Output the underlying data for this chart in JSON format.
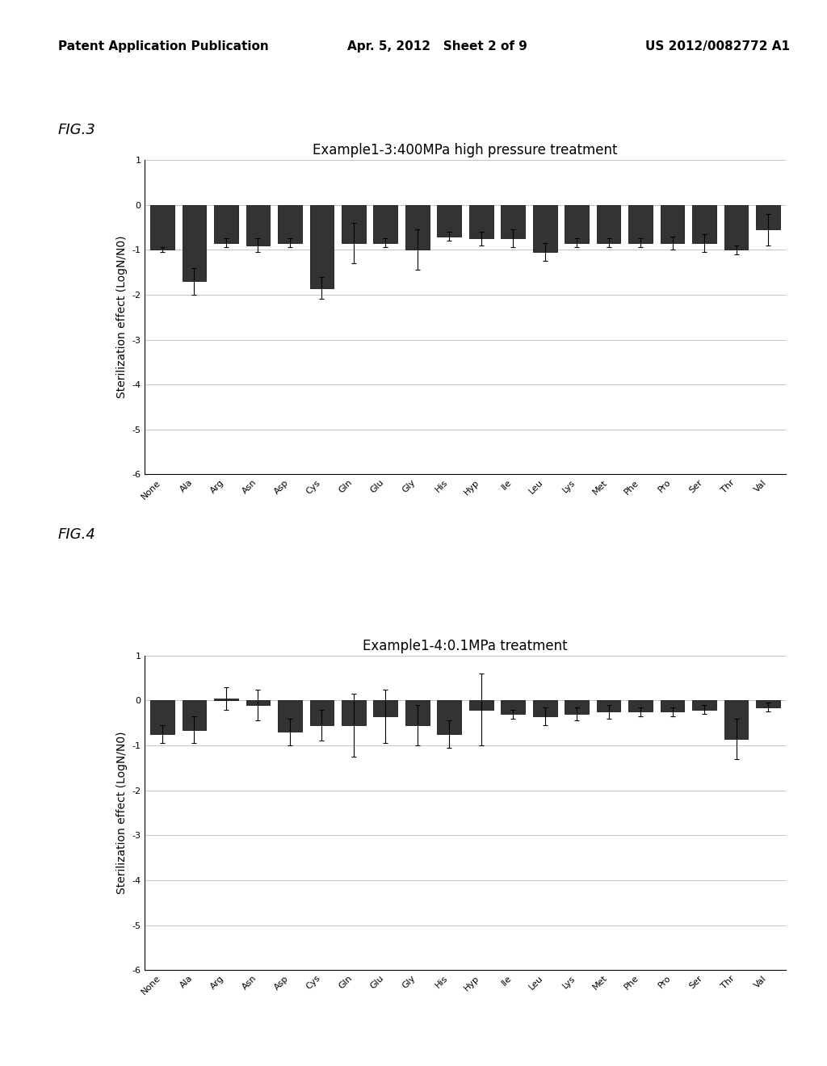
{
  "fig3": {
    "title": "Example1-3:400MPa high pressure treatment",
    "categories": [
      "None",
      "Ala",
      "Arg",
      "Asn",
      "Asp",
      "Cys",
      "Gln",
      "Glu",
      "Gly",
      "His",
      "Hyp",
      "Ile",
      "Leu",
      "Lys",
      "Met",
      "Phe",
      "Pro",
      "Ser",
      "Thr",
      "Val"
    ],
    "values": [
      -1.0,
      -1.7,
      -0.85,
      -0.9,
      -0.85,
      -1.85,
      -0.85,
      -0.85,
      -1.0,
      -0.7,
      -0.75,
      -0.75,
      -1.05,
      -0.85,
      -0.85,
      -0.85,
      -0.85,
      -0.85,
      -1.0,
      -0.55
    ],
    "errors": [
      0.05,
      0.3,
      0.1,
      0.15,
      0.1,
      0.25,
      0.45,
      0.1,
      0.45,
      0.1,
      0.15,
      0.2,
      0.2,
      0.1,
      0.1,
      0.1,
      0.15,
      0.2,
      0.1,
      0.35
    ]
  },
  "fig4": {
    "title": "Example1-4:0.1MPa treatment",
    "categories": [
      "None",
      "Ala",
      "Arg",
      "Asn",
      "Asp",
      "Cys",
      "Gln",
      "Glu",
      "Gly",
      "His",
      "Hyp",
      "Ile",
      "Leu",
      "Lys",
      "Met",
      "Phe",
      "Pro",
      "Ser",
      "Thr",
      "Val"
    ],
    "values": [
      -0.75,
      -0.65,
      0.05,
      -0.1,
      -0.7,
      -0.55,
      -0.55,
      -0.35,
      -0.55,
      -0.75,
      -0.2,
      -0.3,
      -0.35,
      -0.3,
      -0.25,
      -0.25,
      -0.25,
      -0.2,
      -0.85,
      -0.15
    ],
    "errors": [
      0.2,
      0.3,
      0.25,
      0.35,
      0.3,
      0.35,
      0.7,
      0.6,
      0.45,
      0.3,
      0.8,
      0.1,
      0.2,
      0.15,
      0.15,
      0.1,
      0.1,
      0.1,
      0.45,
      0.1
    ]
  },
  "bar_color": "#333333",
  "bar_edgecolor": "#000000",
  "ylabel": "Sterilization effect (LogN/N0)",
  "ylim": [
    -6,
    1
  ],
  "yticks": [
    1,
    0,
    -1,
    -2,
    -3,
    -4,
    -5,
    -6
  ],
  "header_left": "Patent Application Publication",
  "header_mid": "Apr. 5, 2012   Sheet 2 of 9",
  "header_right": "US 2012/0082772 A1",
  "fig3_label": "FIG.3",
  "fig4_label": "FIG.4",
  "background_color": "#ffffff",
  "grid_color": "#bbbbbb",
  "title_fontsize": 12,
  "tick_fontsize": 8,
  "ylabel_fontsize": 10,
  "header_fontsize": 11,
  "figlabel_fontsize": 13
}
